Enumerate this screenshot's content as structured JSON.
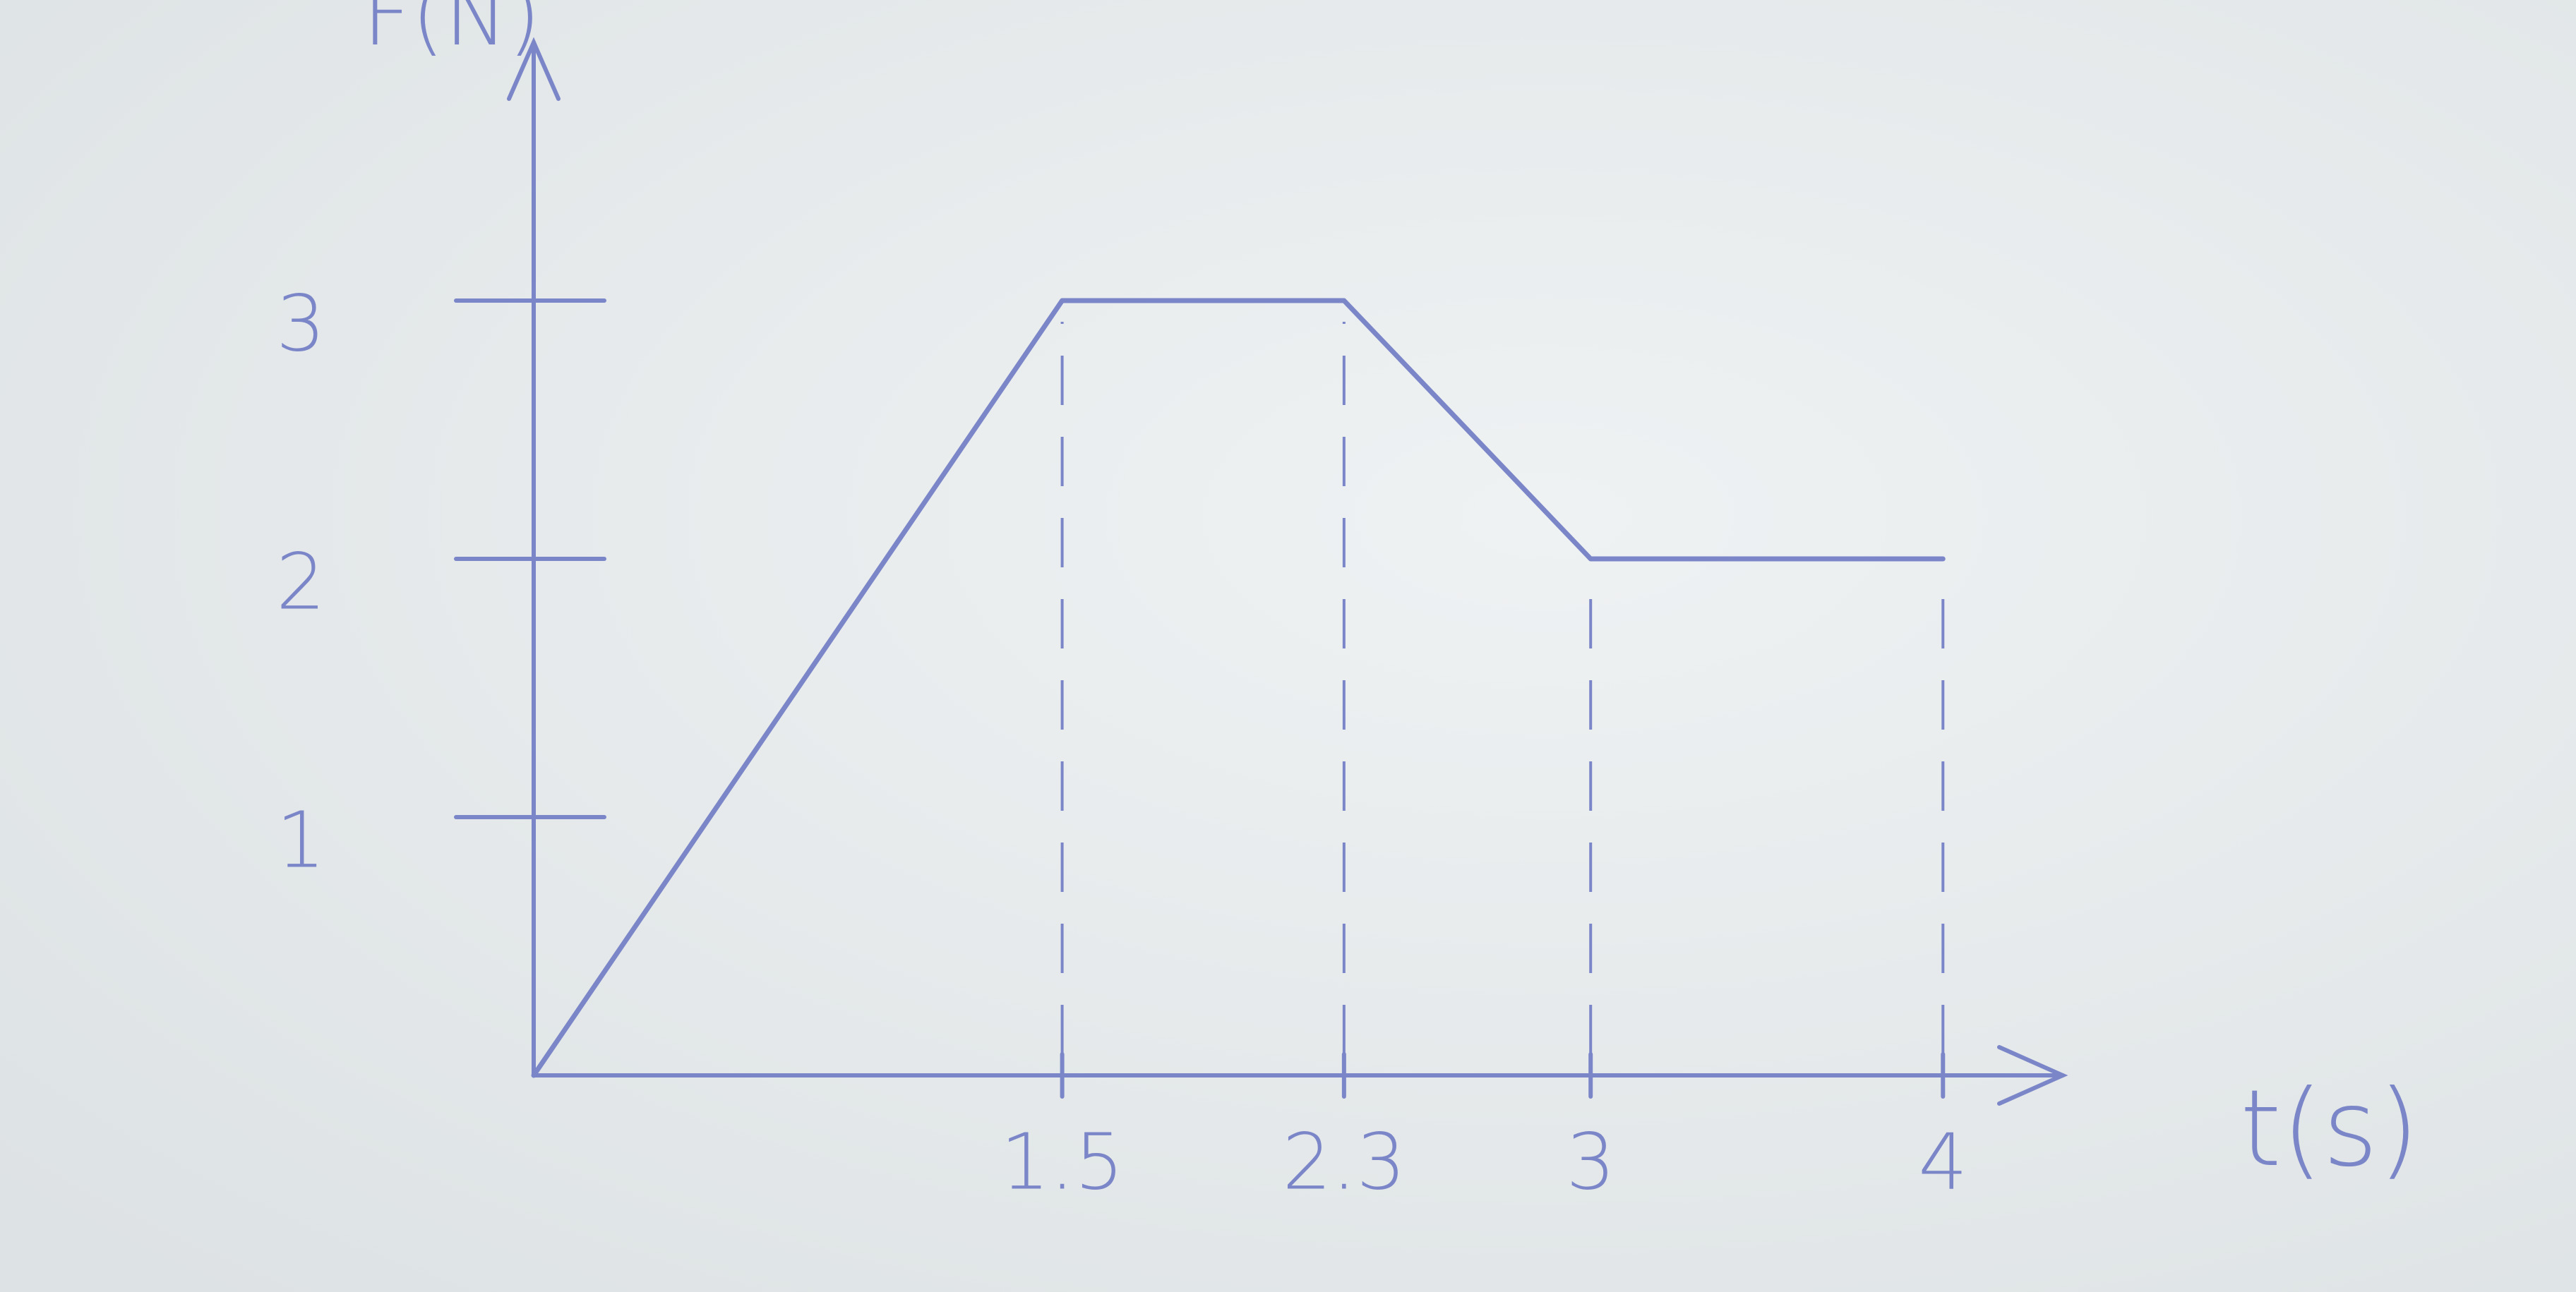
{
  "chart_data": {
    "type": "line",
    "x_label": "t(s)",
    "y_label": "F(N)",
    "x": [
      0,
      1.5,
      2.3,
      3,
      4
    ],
    "values": [
      0,
      3,
      3,
      2,
      2
    ],
    "color": "#7b86c8",
    "xlim": [
      0,
      4.3
    ],
    "ylim": [
      0,
      4
    ],
    "xticks": [
      1.5,
      2.3,
      3,
      4
    ],
    "yticks": [
      1,
      2,
      3
    ]
  }
}
